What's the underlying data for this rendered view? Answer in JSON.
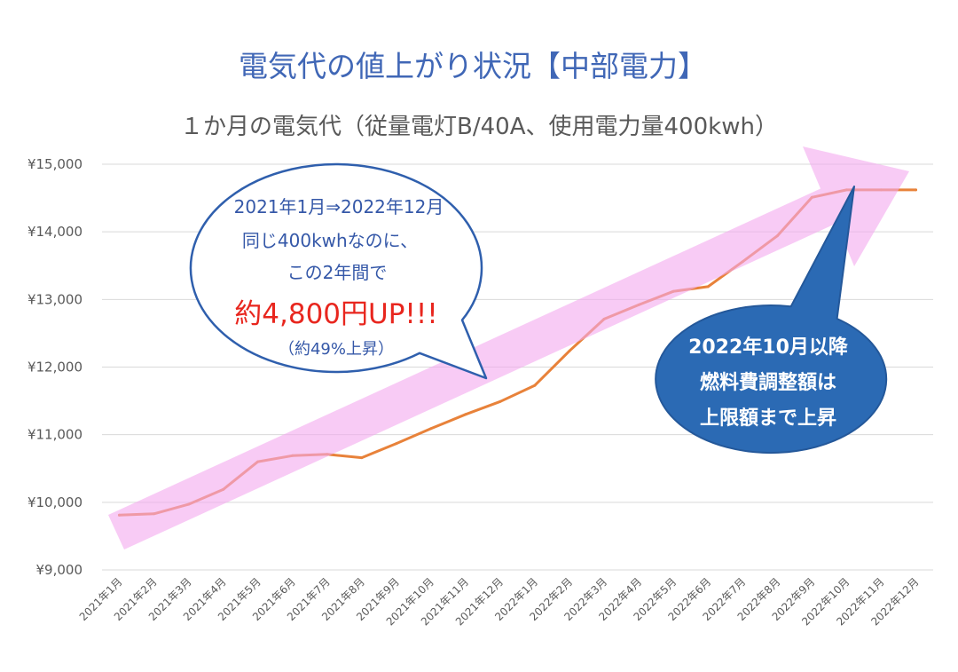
{
  "chart_data": {
    "type": "line",
    "title": "電気代の値上がり状況【中部電力】",
    "subtitle": "１か月の電気代（従量電灯B/40A、使用電力量400kwh）",
    "categories": [
      "2021年1月",
      "2021年2月",
      "2021年3月",
      "2021年4月",
      "2021年5月",
      "2021年6月",
      "2021年7月",
      "2021年8月",
      "2021年9月",
      "2021年10月",
      "2021年11月",
      "2021年12月",
      "2022年1月",
      "2022年2月",
      "2022年3月",
      "2022年4月",
      "2022年5月",
      "2022年6月",
      "2022年7月",
      "2022年8月",
      "2022年9月",
      "2022年10月",
      "2022年11月",
      "2022年12月"
    ],
    "series": [
      {
        "values": [
          9810,
          9830,
          9970,
          10190,
          10600,
          10690,
          10710,
          10660,
          10870,
          11090,
          11300,
          11490,
          11730,
          12240,
          12710,
          12920,
          13120,
          13190,
          13560,
          13940,
          14510,
          14620,
          14620,
          14620
        ],
        "color": "#E8823A"
      }
    ],
    "ylim": [
      9000,
      15000
    ],
    "y_ticks": [
      9000,
      10000,
      11000,
      12000,
      13000,
      14000,
      15000
    ],
    "y_tick_labels": [
      "¥9,000",
      "¥10,000",
      "¥11,000",
      "¥12,000",
      "¥13,000",
      "¥14,000",
      "¥15,000"
    ],
    "grid": true,
    "legend": "none",
    "annotations": [
      {
        "lines": [
          "2021年1月⇒2022年12月",
          "同じ400kwhなのに、",
          "この2年間で"
        ],
        "highlight": "約4,800円UP!!!",
        "note": "（約49%上昇）"
      },
      {
        "lines": [
          "2022年10月以降",
          "燃料費調整額は",
          "上限額まで上昇"
        ]
      }
    ]
  },
  "colors": {
    "title": "#4067B6",
    "subtitle": "#595959",
    "axis_text": "#595959",
    "grid": "#D9D9D9",
    "arrow": "#F4A8EE",
    "bubble_border": "#2F5FAD",
    "bubble_text": "#3558A8",
    "highlight": "#E8261E",
    "callout_fill": "#2B6AB4",
    "callout_border": "#24589A",
    "callout_text": "#FFFFFF"
  }
}
